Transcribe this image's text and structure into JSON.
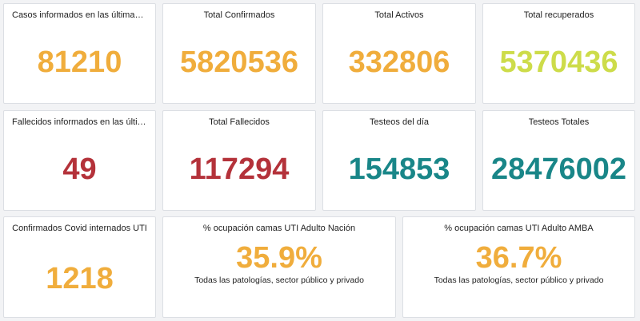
{
  "cards": [
    {
      "title": "Casos informados en las últimas 2...",
      "value": "81210",
      "color": "#f0ad3c"
    },
    {
      "title": "Total Confirmados",
      "value": "5820536",
      "color": "#f0ad3c"
    },
    {
      "title": "Total Activos",
      "value": "332806",
      "color": "#f0ad3c"
    },
    {
      "title": "Total recuperados",
      "value": "5370436",
      "color": "#cddc4a"
    },
    {
      "title": "Fallecidos informados en las últim...",
      "value": "49",
      "color": "#b4323a"
    },
    {
      "title": "Total Fallecidos",
      "value": "117294",
      "color": "#b4323a"
    },
    {
      "title": "Testeos del día",
      "value": "154853",
      "color": "#198688"
    },
    {
      "title": "Testeos Totales",
      "value": "28476002",
      "color": "#198688"
    },
    {
      "title": "Confirmados Covid internados UTI",
      "value": "1218",
      "color": "#f0ad3c"
    },
    {
      "title": "% ocupación camas UTI Adulto Nación",
      "value": "35.9%",
      "sub": "Todas las patologías, sector público y privado",
      "color": "#f0ad3c"
    },
    {
      "title": "% ocupación camas UTI Adulto AMBA",
      "value": "36.7%",
      "sub": "Todas las patologías, sector público y privado",
      "color": "#f0ad3c"
    }
  ]
}
